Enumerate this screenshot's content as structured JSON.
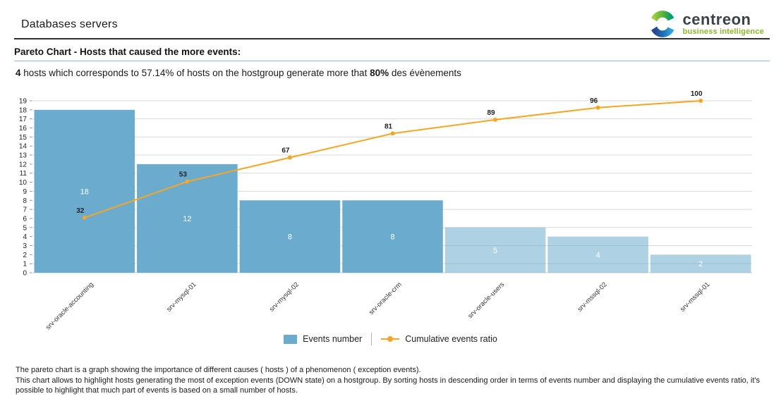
{
  "header": {
    "title": "Databases servers",
    "logo": {
      "brand": "centreon",
      "tagline": "business intelligence"
    }
  },
  "section": {
    "heading": "Pareto Chart - Hosts that caused the more events:"
  },
  "summary": {
    "bold_count": "4",
    "text_mid": " hosts which corresponds to 57.14% of hosts on the hostgroup generate more that ",
    "bold_pct": "80%",
    "text_end": " des évènements"
  },
  "chart_data": {
    "type": "bar+line (pareto)",
    "categories": [
      "srv-oracle-accounting",
      "srv-mysql-01",
      "srv-mysql-02",
      "srv-oracle-crm",
      "srv-oracle-users",
      "srv-mssql-02",
      "srv-mssql-01"
    ],
    "series": [
      {
        "name": "Events number",
        "type": "bar",
        "values": [
          18,
          12,
          8,
          8,
          5,
          4,
          2
        ]
      },
      {
        "name": "Cumulative events ratio",
        "type": "line",
        "values": [
          32,
          53,
          67,
          81,
          89,
          96,
          100
        ],
        "scale": "percent 0-100 mapped to full plot height"
      }
    ],
    "ylim": [
      0,
      19
    ],
    "ytick_step": 1,
    "gridlines": "horizontal at odd values 1-19",
    "bar_color": "#6bacce",
    "muted_from_index": 4,
    "muted_bar_opacity": 0.55,
    "bar_value_label_color": "#ffffff",
    "line_color": "#f5a623",
    "legend_position": "bottom-center"
  },
  "footer": {
    "line1": "The pareto chart is a graph showing the importance of different causes ( hosts ) of a phenomenon ( exception events).",
    "line2": "This chart allows to highlight hosts generating the most of exception events (DOWN state) on a hostgroup. By sorting hosts in descending order in terms of events number and displaying the cumulative events ratio, it's",
    "line3": "possible to highlight that much part of events is based on a small number of hosts."
  }
}
